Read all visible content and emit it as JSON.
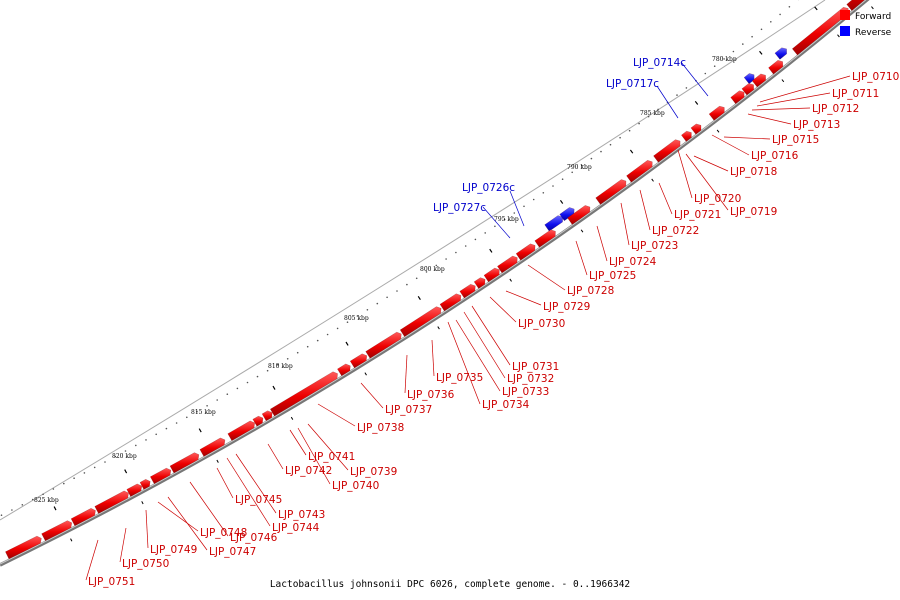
{
  "legend": [
    {
      "label": "Forward",
      "color": "#ff0000"
    },
    {
      "label": "Reverse",
      "color": "#0000ff"
    }
  ],
  "caption": "Lactobacillus johnsonii DPC 6026, complete genome. - 0..1966342",
  "ticks": [
    {
      "label": "780 kbp",
      "kbp": 780
    },
    {
      "label": "785 kbp",
      "kbp": 785
    },
    {
      "label": "790 kbp",
      "kbp": 790
    },
    {
      "label": "795 kbp",
      "kbp": 795
    },
    {
      "label": "800 kbp",
      "kbp": 800
    },
    {
      "label": "805 kbp",
      "kbp": 805
    },
    {
      "label": "810 kbp",
      "kbp": 810
    },
    {
      "label": "815 kbp",
      "kbp": 815
    },
    {
      "label": "820 kbp",
      "kbp": 820
    },
    {
      "label": "825 kbp",
      "kbp": 825
    }
  ],
  "forward_labels": [
    "LJP_0710",
    "LJP_0711",
    "LJP_0712",
    "LJP_0713",
    "LJP_0715",
    "LJP_0716",
    "LJP_0718",
    "LJP_0719",
    "LJP_0720",
    "LJP_0721",
    "LJP_0722",
    "LJP_0723",
    "LJP_0724",
    "LJP_0725",
    "LJP_0728",
    "LJP_0729",
    "LJP_0730",
    "LJP_0731",
    "LJP_0732",
    "LJP_0733",
    "LJP_0734",
    "LJP_0735",
    "LJP_0736",
    "LJP_0737",
    "LJP_0738",
    "LJP_0739",
    "LJP_0740",
    "LJP_0741",
    "LJP_0742",
    "LJP_0743",
    "LJP_0744",
    "LJP_0745",
    "LJP_0746",
    "LJP_0747",
    "LJP_0748",
    "LJP_0749",
    "LJP_0750",
    "LJP_0751"
  ],
  "reverse_labels": [
    "LJP_0714c",
    "LJP_0717c",
    "LJP_0726c",
    "LJP_0727c"
  ]
}
